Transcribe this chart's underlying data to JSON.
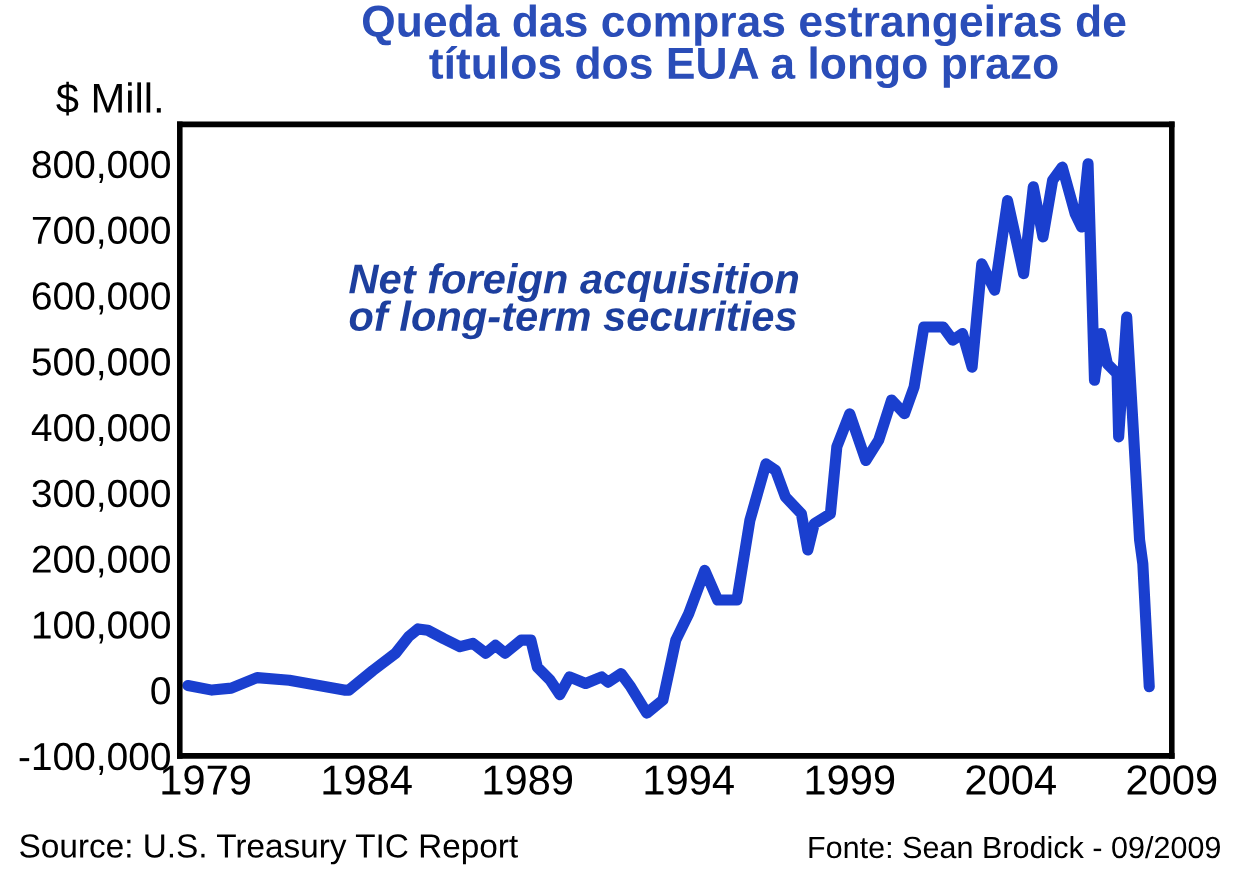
{
  "chart_data": {
    "type": "line",
    "title": "Queda das compras estrangeiras de\ntítulos dos EUA a longo prazo",
    "ylabel": "$ Mill.",
    "annotations": [
      "Net foreign acquisition\nof long-term securities",
      "Source: U.S. Treasury TIC Report",
      "Fonte: Sean Brodick - 09/2009"
    ],
    "series": [
      {
        "color": "#1a3fcf",
        "line_style": "solid",
        "marker": "none",
        "x": [
          1978.45,
          1979.2,
          1979.8,
          1980.6,
          1981.6,
          1983.3,
          1983.45,
          1984.2,
          1984.9,
          1985.3,
          1985.6,
          1985.9,
          1986.4,
          1986.9,
          1987.3,
          1987.7,
          1988.0,
          1988.3,
          1988.5,
          1988.8,
          1989.1,
          1989.3,
          1989.7,
          1990.0,
          1990.3,
          1990.8,
          1991.3,
          1991.5,
          1991.9,
          1992.2,
          1992.7,
          1993.2,
          1993.6,
          1994.0,
          1994.5,
          1994.9,
          1995.5,
          1995.9,
          1996.4,
          1996.7,
          1997.0,
          1997.5,
          1997.7,
          1997.9,
          1998.4,
          1998.6,
          1999.0,
          1999.5,
          1999.9,
          2000.3,
          2000.7,
          2001.0,
          2001.3,
          2001.9,
          2002.2,
          2002.5,
          2002.8,
          2003.1,
          2003.5,
          2003.9,
          2004.4,
          2004.7,
          2005.0,
          2005.3,
          2005.6,
          2006.0,
          2006.2,
          2006.4,
          2006.6,
          2006.8,
          2007.0,
          2007.3,
          2007.35,
          2007.6,
          2007.8,
          2008.0,
          2008.1,
          2008.3
        ],
        "values": [
          7000,
          0,
          3000,
          19000,
          15000,
          0,
          0,
          30000,
          56000,
          81000,
          93000,
          91000,
          78000,
          66000,
          71000,
          56000,
          68000,
          56000,
          64000,
          76000,
          76000,
          35000,
          15000,
          -7000,
          20000,
          10000,
          20000,
          12000,
          25000,
          5000,
          -35000,
          -15000,
          76000,
          116000,
          182000,
          137000,
          137000,
          258000,
          344000,
          334000,
          294000,
          268000,
          213000,
          253000,
          268000,
          370000,
          420000,
          349000,
          380000,
          441000,
          420000,
          461000,
          552000,
          552000,
          532000,
          542000,
          491000,
          648000,
          608000,
          744000,
          633000,
          765000,
          689000,
          775000,
          795000,
          724000,
          704000,
          800000,
          471000,
          542000,
          496000,
          481000,
          385000,
          567000,
          400000,
          228000,
          192000,
          5000
        ]
      }
    ],
    "xlim": [
      1978.2,
      2009.0
    ],
    "xticks": [
      1979,
      1984,
      1989,
      1994,
      1999,
      2004,
      2009
    ],
    "ylim": [
      -100000,
      860000
    ],
    "yticks": [
      {
        "value": -100000,
        "label": "-100,000"
      },
      {
        "value": 0,
        "label": "0"
      },
      {
        "value": 100000,
        "label": "100,000"
      },
      {
        "value": 200000,
        "label": "200,000"
      },
      {
        "value": 300000,
        "label": "300,000"
      },
      {
        "value": 400000,
        "label": "400,000"
      },
      {
        "value": 500000,
        "label": "500,000"
      },
      {
        "value": 600000,
        "label": "600,000"
      },
      {
        "value": 700000,
        "label": "700,000"
      },
      {
        "value": 800000,
        "label": "800,000"
      }
    ],
    "grid": false
  }
}
